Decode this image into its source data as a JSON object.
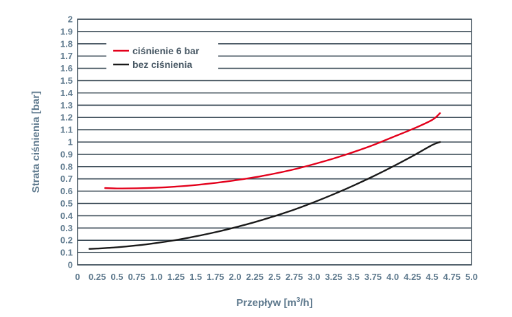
{
  "chart_data": {
    "type": "line",
    "title": "",
    "xlabel": "Przepływ [m3/h]",
    "xlabel_main": "Przepływ [m",
    "xlabel_sup": "3",
    "xlabel_end": "/h]",
    "ylabel": "Strata ciśnienia [bar]",
    "xlim": [
      0,
      5.0
    ],
    "ylim": [
      0,
      2
    ],
    "x_ticks": [
      "0",
      "0.25",
      "0.5",
      "0.75",
      "1.0",
      "1.25",
      "1.5",
      "1.75",
      "2.0",
      "2.25",
      "2.5",
      "2.75",
      "3.0",
      "3.25",
      "3.5",
      "3.75",
      "4.0",
      "4.25",
      "4.5",
      "4.75",
      "5.0"
    ],
    "y_ticks": [
      "0",
      "0.1",
      "0.2",
      "0.3",
      "0.4",
      "0.5",
      "0.6",
      "0.7",
      "0.8",
      "0.9",
      "1",
      "1.1",
      "1.2",
      "1.3",
      "1.4",
      "1.5",
      "1.6",
      "1.7",
      "1.8",
      "1.9",
      "2"
    ],
    "grid": true,
    "legend_position": "top-left",
    "series": [
      {
        "name": "ciśnienie 6 bar",
        "color": "#e3001b",
        "x": [
          0.35,
          0.5,
          0.75,
          1.0,
          1.25,
          1.5,
          1.75,
          2.0,
          2.25,
          2.5,
          2.75,
          3.0,
          3.25,
          3.5,
          3.75,
          4.0,
          4.25,
          4.5,
          4.6
        ],
        "y": [
          0.625,
          0.622,
          0.623,
          0.628,
          0.637,
          0.65,
          0.667,
          0.688,
          0.713,
          0.743,
          0.778,
          0.82,
          0.866,
          0.918,
          0.975,
          1.04,
          1.105,
          1.18,
          1.235
        ]
      },
      {
        "name": "bez ciśnienia",
        "color": "#1a1a1a",
        "x": [
          0.15,
          0.25,
          0.5,
          0.75,
          1.0,
          1.25,
          1.5,
          1.75,
          2.0,
          2.25,
          2.5,
          2.75,
          3.0,
          3.25,
          3.5,
          3.75,
          4.0,
          4.25,
          4.5,
          4.6
        ],
        "y": [
          0.13,
          0.133,
          0.143,
          0.158,
          0.178,
          0.202,
          0.232,
          0.266,
          0.305,
          0.348,
          0.397,
          0.45,
          0.51,
          0.575,
          0.645,
          0.72,
          0.8,
          0.885,
          0.975,
          1.0
        ]
      }
    ]
  }
}
